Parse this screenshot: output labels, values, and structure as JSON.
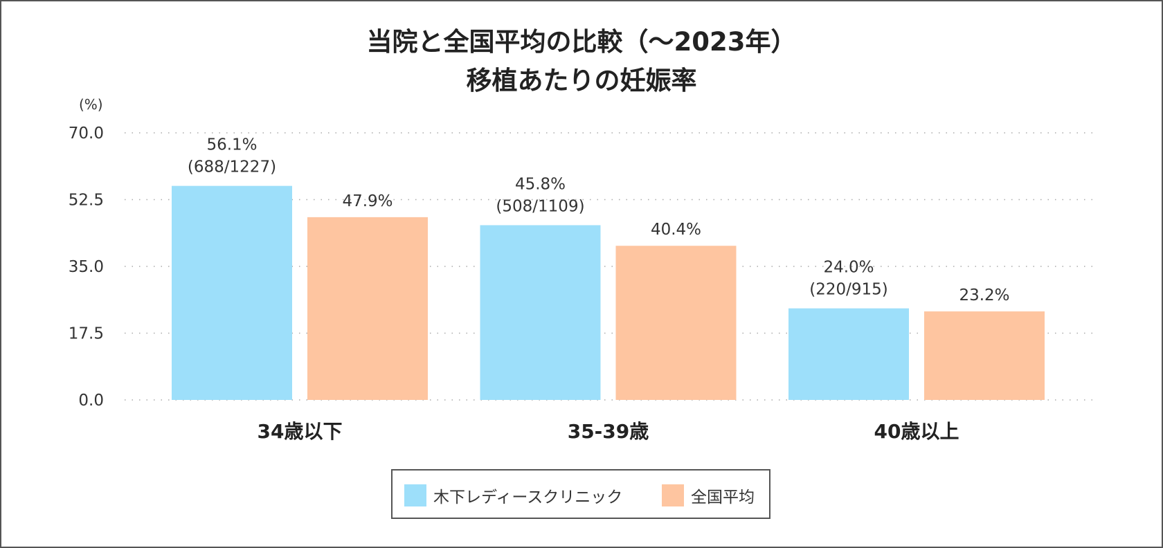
{
  "chart_data": {
    "type": "bar",
    "title": [
      "当院と全国平均の比較（〜2023年）",
      "移植あたりの妊娠率"
    ],
    "ylabel": "(%)",
    "ylim": [
      0,
      70
    ],
    "yticks": [
      "70.0",
      "52.5",
      "35.0",
      "17.5",
      "0.0"
    ],
    "categories": [
      "34歳以下",
      "35-39歳",
      "40歳以上"
    ],
    "series": [
      {
        "name": "木下レディースクリニック",
        "color": "#9ddffa",
        "values": [
          56.1,
          45.8,
          24.0
        ],
        "labels": [
          "56.1%",
          "45.8%",
          "24.0%"
        ],
        "sublabels": [
          "(688/1227)",
          "(508/1109)",
          "(220/915)"
        ]
      },
      {
        "name": "全国平均",
        "color": "#fec5a0",
        "values": [
          47.9,
          40.4,
          23.2
        ],
        "labels": [
          "47.9%",
          "40.4%",
          "23.2%"
        ],
        "sublabels": [
          "",
          "",
          ""
        ]
      }
    ],
    "grid": true,
    "legend_position": "bottom"
  }
}
